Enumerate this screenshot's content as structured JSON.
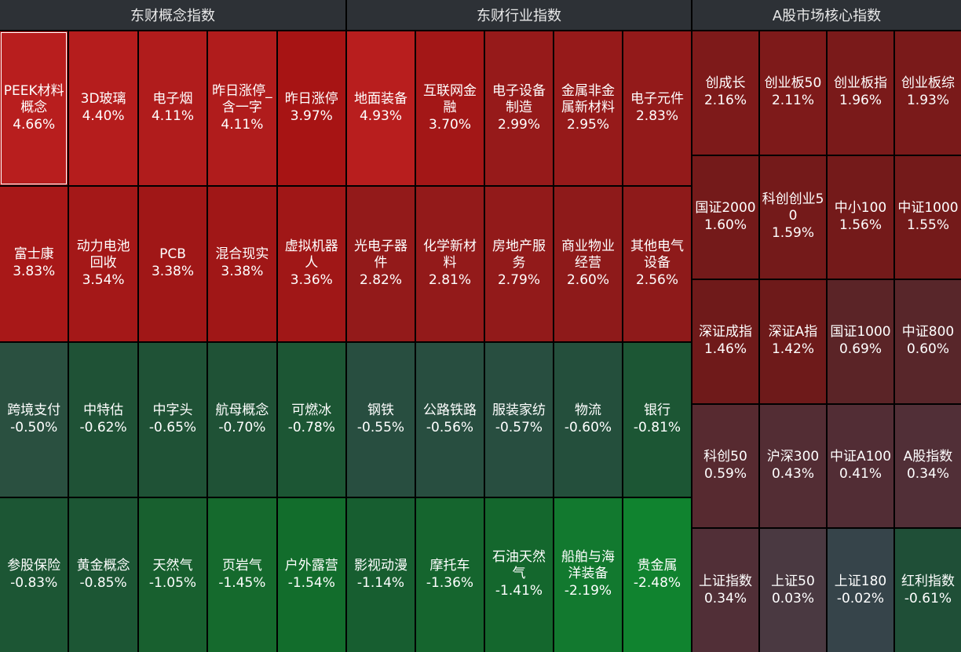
{
  "panels": [
    {
      "title": "东财概念指数",
      "cells": [
        {
          "name": "PEEK材料概念",
          "value": "4.66%",
          "color": "#b81e1e",
          "selected": true
        },
        {
          "name": "3D玻璃",
          "value": "4.40%",
          "color": "#b51d1d"
        },
        {
          "name": "电子烟",
          "value": "4.11%",
          "color": "#b01c1c"
        },
        {
          "name": "昨日涨停_含一字",
          "value": "4.11%",
          "color": "#b01c1c"
        },
        {
          "name": "昨日涨停",
          "value": "3.97%",
          "color": "#a71414"
        },
        {
          "name": "富士康",
          "value": "3.83%",
          "color": "#a81818"
        },
        {
          "name": "动力电池回收",
          "value": "3.54%",
          "color": "#a41818"
        },
        {
          "name": "PCB",
          "value": "3.38%",
          "color": "#a01717"
        },
        {
          "name": "混合现实",
          "value": "3.38%",
          "color": "#a01717"
        },
        {
          "name": "虚拟机器人",
          "value": "3.36%",
          "color": "#a01717"
        },
        {
          "name": "跨境支付",
          "value": "-0.50%",
          "color": "#2a5040"
        },
        {
          "name": "中特估",
          "value": "-0.62%",
          "color": "#1f5236"
        },
        {
          "name": "中字头",
          "value": "-0.65%",
          "color": "#1f5236"
        },
        {
          "name": "航母概念",
          "value": "-0.70%",
          "color": "#1f5236"
        },
        {
          "name": "可燃冰",
          "value": "-0.78%",
          "color": "#1c5634"
        },
        {
          "name": "参股保险",
          "value": "-0.83%",
          "color": "#1c5634"
        },
        {
          "name": "黄金概念",
          "value": "-0.85%",
          "color": "#1c5634"
        },
        {
          "name": "天然气",
          "value": "-1.05%",
          "color": "#18602f"
        },
        {
          "name": "页岩气",
          "value": "-1.45%",
          "color": "#156a2d"
        },
        {
          "name": "户外露营",
          "value": "-1.54%",
          "color": "#126d2c"
        }
      ]
    },
    {
      "title": "东财行业指数",
      "cells": [
        {
          "name": "地面装备",
          "value": "4.93%",
          "color": "#b81e1e"
        },
        {
          "name": "互联网金融",
          "value": "3.70%",
          "color": "#a31717"
        },
        {
          "name": "电子设备制造",
          "value": "2.99%",
          "color": "#961a1a"
        },
        {
          "name": "金属非金属新材料",
          "value": "2.95%",
          "color": "#961a1a"
        },
        {
          "name": "电子元件",
          "value": "2.83%",
          "color": "#931a1a"
        },
        {
          "name": "光电子器件",
          "value": "2.82%",
          "color": "#931a1a"
        },
        {
          "name": "化学新材料",
          "value": "2.81%",
          "color": "#931a1a"
        },
        {
          "name": "房地产服务",
          "value": "2.79%",
          "color": "#921a1a"
        },
        {
          "name": "商业物业经营",
          "value": "2.60%",
          "color": "#8e1a1a"
        },
        {
          "name": "其他电气设备",
          "value": "2.56%",
          "color": "#8e1a1a"
        },
        {
          "name": "钢铁",
          "value": "-0.55%",
          "color": "#284e40"
        },
        {
          "name": "公路铁路",
          "value": "-0.56%",
          "color": "#284e40"
        },
        {
          "name": "服装家纺",
          "value": "-0.57%",
          "color": "#284e40"
        },
        {
          "name": "物流",
          "value": "-0.60%",
          "color": "#244f3c"
        },
        {
          "name": "银行",
          "value": "-0.81%",
          "color": "#1c5634"
        },
        {
          "name": "影视动漫",
          "value": "-1.14%",
          "color": "#175e30"
        },
        {
          "name": "摩托车",
          "value": "-1.36%",
          "color": "#15652e"
        },
        {
          "name": "石油天然气",
          "value": "-1.41%",
          "color": "#14672d"
        },
        {
          "name": "船舶与海洋装备",
          "value": "-2.19%",
          "color": "#12792f"
        },
        {
          "name": "贵金属",
          "value": "-2.48%",
          "color": "#10832f"
        }
      ]
    },
    {
      "title": "A股市场核心指数",
      "cells": [
        {
          "name": "创成长",
          "value": "2.16%",
          "color": "#7e1a1a"
        },
        {
          "name": "创业板50",
          "value": "2.11%",
          "color": "#7e1a1a"
        },
        {
          "name": "创业板指",
          "value": "1.96%",
          "color": "#7a1a1a"
        },
        {
          "name": "创业板综",
          "value": "1.93%",
          "color": "#7a1a1a"
        },
        {
          "name": "国证2000",
          "value": "1.60%",
          "color": "#741a1a"
        },
        {
          "name": "科创创业50",
          "value": "1.59%",
          "color": "#741a1a"
        },
        {
          "name": "中小100",
          "value": "1.56%",
          "color": "#741a1a"
        },
        {
          "name": "中证1000",
          "value": "1.55%",
          "color": "#741a1a"
        },
        {
          "name": "深证成指",
          "value": "1.46%",
          "color": "#6f1a1a"
        },
        {
          "name": "深证A指",
          "value": "1.42%",
          "color": "#6e1a1a"
        },
        {
          "name": "国证1000",
          "value": "0.69%",
          "color": "#5b2427"
        },
        {
          "name": "中证800",
          "value": "0.60%",
          "color": "#58262a"
        },
        {
          "name": "科创50",
          "value": "0.59%",
          "color": "#572a30"
        },
        {
          "name": "沪深300",
          "value": "0.43%",
          "color": "#532d34"
        },
        {
          "name": "中证A100",
          "value": "0.41%",
          "color": "#522d35"
        },
        {
          "name": "A股指数",
          "value": "0.34%",
          "color": "#512f37"
        },
        {
          "name": "上证指数",
          "value": "0.34%",
          "color": "#512f37"
        },
        {
          "name": "上证50",
          "value": "0.03%",
          "color": "#4a3941"
        },
        {
          "name": "上证180",
          "value": "-0.02%",
          "color": "#36444a"
        },
        {
          "name": "红利指数",
          "value": "-0.61%",
          "color": "#1f4f37"
        }
      ]
    }
  ]
}
